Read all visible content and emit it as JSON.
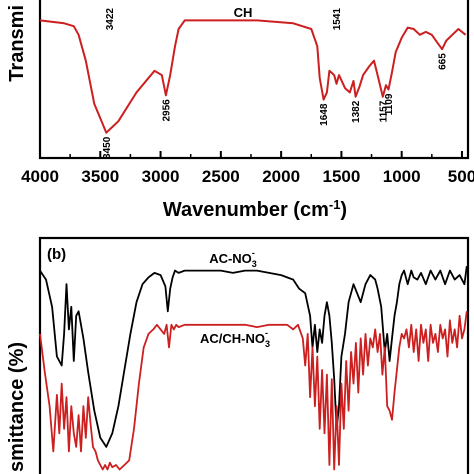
{
  "chart_data": [
    {
      "type": "line",
      "panel": "a",
      "ylabel": "Transmi",
      "xlabel": "Wavenumber (cm",
      "xlabel_sup": "-1",
      "xlabel_close": ")",
      "xlim": [
        4000,
        450
      ],
      "xticks": [
        4000,
        3500,
        3000,
        2500,
        2000,
        1500,
        1000,
        500
      ],
      "xtick_labels": [
        "4000",
        "3500",
        "3000",
        "2500",
        "2000",
        "1500",
        "1000",
        "500"
      ],
      "series": [
        {
          "name": "CH",
          "color": "#cc1f1f",
          "x": [
            4000,
            3800,
            3720,
            3680,
            3620,
            3550,
            3450,
            3350,
            3200,
            3050,
            2990,
            2956,
            2920,
            2880,
            2850,
            2800,
            2750,
            2700,
            2500,
            2200,
            1900,
            1750,
            1700,
            1680,
            1648,
            1620,
            1600,
            1560,
            1541,
            1520,
            1470,
            1430,
            1400,
            1382,
            1350,
            1320,
            1270,
            1230,
            1200,
            1157,
            1130,
            1109,
            1080,
            1050,
            1000,
            950,
            900,
            850,
            800,
            750,
            700,
            665,
            630,
            580,
            530,
            470
          ],
          "y": [
            0.9,
            0.88,
            0.86,
            0.8,
            0.62,
            0.32,
            0.12,
            0.2,
            0.4,
            0.55,
            0.52,
            0.38,
            0.52,
            0.72,
            0.84,
            0.9,
            0.9,
            0.9,
            0.9,
            0.9,
            0.88,
            0.84,
            0.72,
            0.5,
            0.35,
            0.4,
            0.55,
            0.52,
            0.46,
            0.52,
            0.43,
            0.4,
            0.48,
            0.37,
            0.44,
            0.52,
            0.58,
            0.62,
            0.52,
            0.37,
            0.45,
            0.42,
            0.54,
            0.68,
            0.78,
            0.85,
            0.84,
            0.8,
            0.82,
            0.8,
            0.74,
            0.7,
            0.76,
            0.8,
            0.84,
            0.8
          ]
        }
      ],
      "peak_labels": [
        {
          "x": 3450,
          "label": "3450",
          "pos": "below"
        },
        {
          "x": 2956,
          "label": "2956",
          "pos": "below"
        },
        {
          "x": 1648,
          "label": "1648",
          "pos": "below"
        },
        {
          "x": 1382,
          "label": "1382",
          "pos": "below"
        },
        {
          "x": 1157,
          "label": "1157",
          "pos": "below"
        },
        {
          "x": 1109,
          "label": "1109",
          "pos": "below"
        },
        {
          "x": 665,
          "label": "665",
          "pos": "below"
        },
        {
          "x": 3422,
          "label": "3422",
          "pos": "above"
        },
        {
          "x": 1541,
          "label": "1541",
          "pos": "above"
        }
      ]
    },
    {
      "type": "line",
      "panel": "b",
      "panel_label": "(b)",
      "ylabel": "smittance (%)",
      "xlim": [
        4000,
        450
      ],
      "series": [
        {
          "name": "AC-NO3",
          "label_main": "AC-NO",
          "label_sub": "3",
          "label_sup": "-",
          "color": "#000000",
          "x": [
            4000,
            3950,
            3900,
            3860,
            3820,
            3800,
            3780,
            3760,
            3740,
            3720,
            3700,
            3680,
            3660,
            3640,
            3600,
            3550,
            3500,
            3450,
            3400,
            3350,
            3300,
            3250,
            3200,
            3150,
            3100,
            3050,
            3000,
            2960,
            2940,
            2920,
            2900,
            2880,
            2850,
            2800,
            2700,
            2600,
            2500,
            2400,
            2300,
            2200,
            2100,
            2000,
            1900,
            1850,
            1800,
            1760,
            1740,
            1720,
            1700,
            1680,
            1660,
            1640,
            1620,
            1600,
            1580,
            1560,
            1540,
            1520,
            1500,
            1470,
            1440,
            1400,
            1370,
            1340,
            1300,
            1260,
            1220,
            1200,
            1170,
            1140,
            1120,
            1100,
            1080,
            1060,
            1040,
            1020,
            1000,
            980,
            950,
            920,
            900,
            870,
            840,
            800,
            760,
            720,
            680,
            640,
            600,
            560,
            520,
            480,
            460
          ],
          "y": [
            0.9,
            0.86,
            0.74,
            0.52,
            0.48,
            0.62,
            0.84,
            0.64,
            0.74,
            0.5,
            0.7,
            0.72,
            0.66,
            0.6,
            0.45,
            0.28,
            0.16,
            0.12,
            0.18,
            0.3,
            0.46,
            0.62,
            0.76,
            0.84,
            0.87,
            0.89,
            0.88,
            0.83,
            0.72,
            0.82,
            0.87,
            0.9,
            0.89,
            0.9,
            0.9,
            0.9,
            0.9,
            0.89,
            0.9,
            0.9,
            0.89,
            0.88,
            0.86,
            0.82,
            0.8,
            0.7,
            0.56,
            0.66,
            0.54,
            0.64,
            0.58,
            0.7,
            0.76,
            0.7,
            0.58,
            0.42,
            0.2,
            0.3,
            0.52,
            0.62,
            0.76,
            0.84,
            0.8,
            0.76,
            0.84,
            0.88,
            0.86,
            0.82,
            0.74,
            0.54,
            0.62,
            0.5,
            0.6,
            0.7,
            0.76,
            0.84,
            0.88,
            0.9,
            0.84,
            0.9,
            0.87,
            0.86,
            0.89,
            0.84,
            0.9,
            0.86,
            0.9,
            0.84,
            0.9,
            0.86,
            0.88,
            0.84,
            0.92
          ]
        },
        {
          "name": "AC/CH-NO3",
          "label_main": "AC/CH-NO",
          "label_sub": "3",
          "label_sup": "-",
          "color": "#cc1f1f",
          "x": [
            4000,
            3960,
            3920,
            3890,
            3860,
            3840,
            3820,
            3800,
            3780,
            3760,
            3740,
            3720,
            3700,
            3680,
            3660,
            3640,
            3620,
            3600,
            3580,
            3560,
            3540,
            3520,
            3500,
            3480,
            3460,
            3440,
            3420,
            3400,
            3370,
            3340,
            3300,
            3260,
            3220,
            3180,
            3140,
            3100,
            3060,
            3030,
            3000,
            2970,
            2950,
            2930,
            2910,
            2890,
            2870,
            2850,
            2800,
            2700,
            2600,
            2500,
            2400,
            2300,
            2200,
            2100,
            2000,
            1950,
            1900,
            1860,
            1820,
            1800,
            1780,
            1760,
            1740,
            1720,
            1700,
            1680,
            1660,
            1640,
            1620,
            1600,
            1580,
            1560,
            1540,
            1520,
            1500,
            1480,
            1460,
            1440,
            1420,
            1400,
            1380,
            1360,
            1340,
            1320,
            1300,
            1280,
            1260,
            1240,
            1220,
            1200,
            1180,
            1160,
            1140,
            1120,
            1100,
            1080,
            1060,
            1040,
            1020,
            1000,
            980,
            960,
            940,
            920,
            900,
            880,
            860,
            840,
            820,
            800,
            780,
            760,
            740,
            720,
            700,
            680,
            660,
            640,
            620,
            600,
            580,
            560,
            540,
            520,
            500,
            480,
            460
          ],
          "y": [
            0.62,
            0.45,
            0.3,
            0.1,
            0.35,
            0.18,
            0.4,
            0.2,
            0.34,
            0.1,
            0.3,
            0.18,
            0.12,
            0.26,
            0.1,
            0.3,
            0.16,
            0.34,
            0.22,
            0.12,
            0.1,
            0.06,
            0.04,
            0.02,
            0.04,
            0.02,
            0.05,
            0.03,
            0.04,
            0.02,
            0.04,
            0.06,
            0.2,
            0.4,
            0.56,
            0.62,
            0.64,
            0.66,
            0.64,
            0.62,
            0.66,
            0.56,
            0.66,
            0.64,
            0.66,
            0.65,
            0.66,
            0.66,
            0.66,
            0.66,
            0.66,
            0.66,
            0.65,
            0.66,
            0.66,
            0.66,
            0.64,
            0.66,
            0.6,
            0.48,
            0.62,
            0.34,
            0.56,
            0.3,
            0.52,
            0.2,
            0.46,
            0.18,
            0.44,
            0.04,
            0.42,
            0.02,
            0.3,
            0.04,
            0.4,
            0.2,
            0.5,
            0.28,
            0.54,
            0.4,
            0.58,
            0.36,
            0.6,
            0.44,
            0.62,
            0.48,
            0.6,
            0.56,
            0.64,
            0.54,
            0.62,
            0.44,
            0.56,
            0.3,
            0.28,
            0.24,
            0.36,
            0.46,
            0.56,
            0.62,
            0.6,
            0.64,
            0.56,
            0.66,
            0.54,
            0.64,
            0.5,
            0.66,
            0.58,
            0.64,
            0.5,
            0.66,
            0.58,
            0.62,
            0.54,
            0.66,
            0.6,
            0.64,
            0.52,
            0.68,
            0.58,
            0.64,
            0.56,
            0.7,
            0.6,
            0.64,
            0.72
          ]
        }
      ]
    }
  ]
}
